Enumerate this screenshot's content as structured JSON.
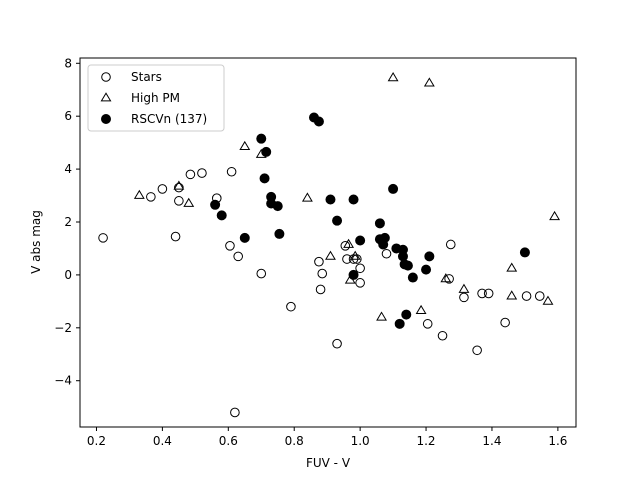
{
  "chart_data": {
    "type": "scatter",
    "xlabel": "FUV - V",
    "ylabel": "V abs mag",
    "xlim": [
      0.15,
      1.655
    ],
    "ylim": [
      -5.75,
      8.2
    ],
    "xticks": [
      0.2,
      0.4,
      0.6,
      0.8,
      1.0,
      1.2,
      1.4,
      1.6
    ],
    "xtick_labels": [
      "0.2",
      "0.4",
      "0.6",
      "0.8",
      "1.0",
      "1.2",
      "1.4",
      "1.6"
    ],
    "yticks": [
      -4,
      -2,
      0,
      2,
      4,
      6,
      8
    ],
    "ytick_labels": [
      "−4",
      "−2",
      "0",
      "2",
      "4",
      "6",
      "8"
    ],
    "grid": false,
    "legend_position": "top-left",
    "series": [
      {
        "name": "Stars",
        "marker": "open-circle",
        "color": "#000000",
        "points": [
          [
            0.22,
            1.4
          ],
          [
            0.365,
            2.95
          ],
          [
            0.4,
            3.25
          ],
          [
            0.44,
            1.45
          ],
          [
            0.45,
            2.8
          ],
          [
            0.45,
            3.3
          ],
          [
            0.485,
            3.8
          ],
          [
            0.52,
            3.85
          ],
          [
            0.565,
            2.9
          ],
          [
            0.61,
            3.9
          ],
          [
            0.605,
            1.1
          ],
          [
            0.63,
            0.7
          ],
          [
            0.7,
            0.05
          ],
          [
            0.79,
            -1.2
          ],
          [
            0.62,
            -5.2
          ],
          [
            0.875,
            0.5
          ],
          [
            0.885,
            0.05
          ],
          [
            0.88,
            -0.55
          ],
          [
            0.93,
            -2.6
          ],
          [
            0.955,
            1.1
          ],
          [
            0.96,
            0.6
          ],
          [
            0.98,
            0.6
          ],
          [
            0.99,
            0.6
          ],
          [
            1.0,
            0.25
          ],
          [
            1.0,
            -0.3
          ],
          [
            1.08,
            0.8
          ],
          [
            1.205,
            -1.85
          ],
          [
            1.25,
            -2.3
          ],
          [
            1.27,
            -0.15
          ],
          [
            1.275,
            1.15
          ],
          [
            1.315,
            -0.85
          ],
          [
            1.355,
            -2.85
          ],
          [
            1.37,
            -0.7
          ],
          [
            1.39,
            -0.7
          ],
          [
            1.44,
            -1.8
          ],
          [
            1.505,
            -0.8
          ],
          [
            1.545,
            -0.8
          ]
        ]
      },
      {
        "name": "High PM",
        "marker": "open-triangle",
        "color": "#000000",
        "points": [
          [
            0.33,
            3.0
          ],
          [
            0.45,
            3.35
          ],
          [
            0.48,
            2.7
          ],
          [
            0.65,
            4.85
          ],
          [
            0.7,
            4.55
          ],
          [
            0.84,
            2.9
          ],
          [
            0.91,
            0.7
          ],
          [
            0.965,
            1.15
          ],
          [
            0.97,
            -0.2
          ],
          [
            0.985,
            0.7
          ],
          [
            1.065,
            -1.6
          ],
          [
            1.1,
            7.45
          ],
          [
            1.185,
            -1.35
          ],
          [
            1.21,
            7.25
          ],
          [
            1.26,
            -0.15
          ],
          [
            1.315,
            -0.55
          ],
          [
            1.46,
            0.25
          ],
          [
            1.46,
            -0.8
          ],
          [
            1.57,
            -1.0
          ],
          [
            1.59,
            2.2
          ]
        ]
      },
      {
        "name": "RSCVn (137)",
        "marker": "filled-circle",
        "color": "#000000",
        "points": [
          [
            0.56,
            2.65
          ],
          [
            0.58,
            2.25
          ],
          [
            0.65,
            1.4
          ],
          [
            0.7,
            5.15
          ],
          [
            0.71,
            3.65
          ],
          [
            0.715,
            4.65
          ],
          [
            0.73,
            2.95
          ],
          [
            0.73,
            2.7
          ],
          [
            0.75,
            2.6
          ],
          [
            0.755,
            1.55
          ],
          [
            0.86,
            5.95
          ],
          [
            0.875,
            5.8
          ],
          [
            0.91,
            2.85
          ],
          [
            0.93,
            2.05
          ],
          [
            0.98,
            2.85
          ],
          [
            0.98,
            0.0
          ],
          [
            1.0,
            1.3
          ],
          [
            1.06,
            1.95
          ],
          [
            1.06,
            1.35
          ],
          [
            1.07,
            1.15
          ],
          [
            1.075,
            1.4
          ],
          [
            1.1,
            3.25
          ],
          [
            1.11,
            1.0
          ],
          [
            1.13,
            0.95
          ],
          [
            1.13,
            0.7
          ],
          [
            1.135,
            0.4
          ],
          [
            1.145,
            0.35
          ],
          [
            1.16,
            -0.1
          ],
          [
            1.2,
            0.2
          ],
          [
            1.21,
            0.7
          ],
          [
            1.12,
            -1.85
          ],
          [
            1.14,
            -1.5
          ],
          [
            1.5,
            0.85
          ]
        ]
      }
    ]
  }
}
